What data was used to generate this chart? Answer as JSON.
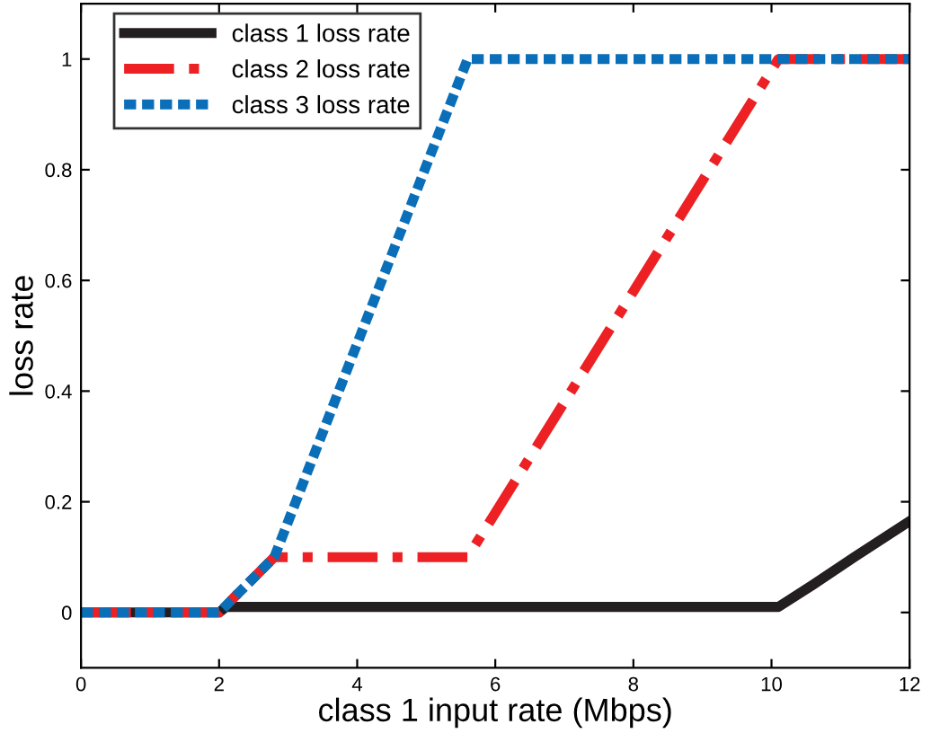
{
  "chart_data": {
    "type": "line",
    "xlabel": "class 1 input rate (Mbps)",
    "ylabel": "loss rate",
    "xlim": [
      0,
      12
    ],
    "ylim": [
      -0.1,
      1.1
    ],
    "xticks": [
      0,
      2,
      4,
      6,
      8,
      10,
      12
    ],
    "yticks": [
      0,
      0.2,
      0.4,
      0.6,
      0.8,
      1
    ],
    "series": [
      {
        "name": "class 1 loss rate",
        "color": "#231f20",
        "line_style": "solid",
        "x": [
          0,
          2,
          2.1,
          10.1,
          10.6,
          11.2,
          12
        ],
        "values": [
          0,
          0,
          0.01,
          0.01,
          0.05,
          0.1,
          0.165
        ]
      },
      {
        "name": "class 2 loss rate",
        "color": "#ed2024",
        "line_style": "dashdot",
        "x": [
          0,
          2,
          2.8,
          5.6,
          10.1,
          12
        ],
        "values": [
          0,
          0,
          0.1,
          0.1,
          1,
          1
        ]
      },
      {
        "name": "class 3 loss rate",
        "color": "#0a6fb8",
        "line_style": "dotted",
        "x": [
          0,
          2,
          2.8,
          5.6,
          12
        ],
        "values": [
          0,
          0,
          0.1,
          1,
          1
        ]
      }
    ],
    "legend": "top left",
    "grid": false
  }
}
